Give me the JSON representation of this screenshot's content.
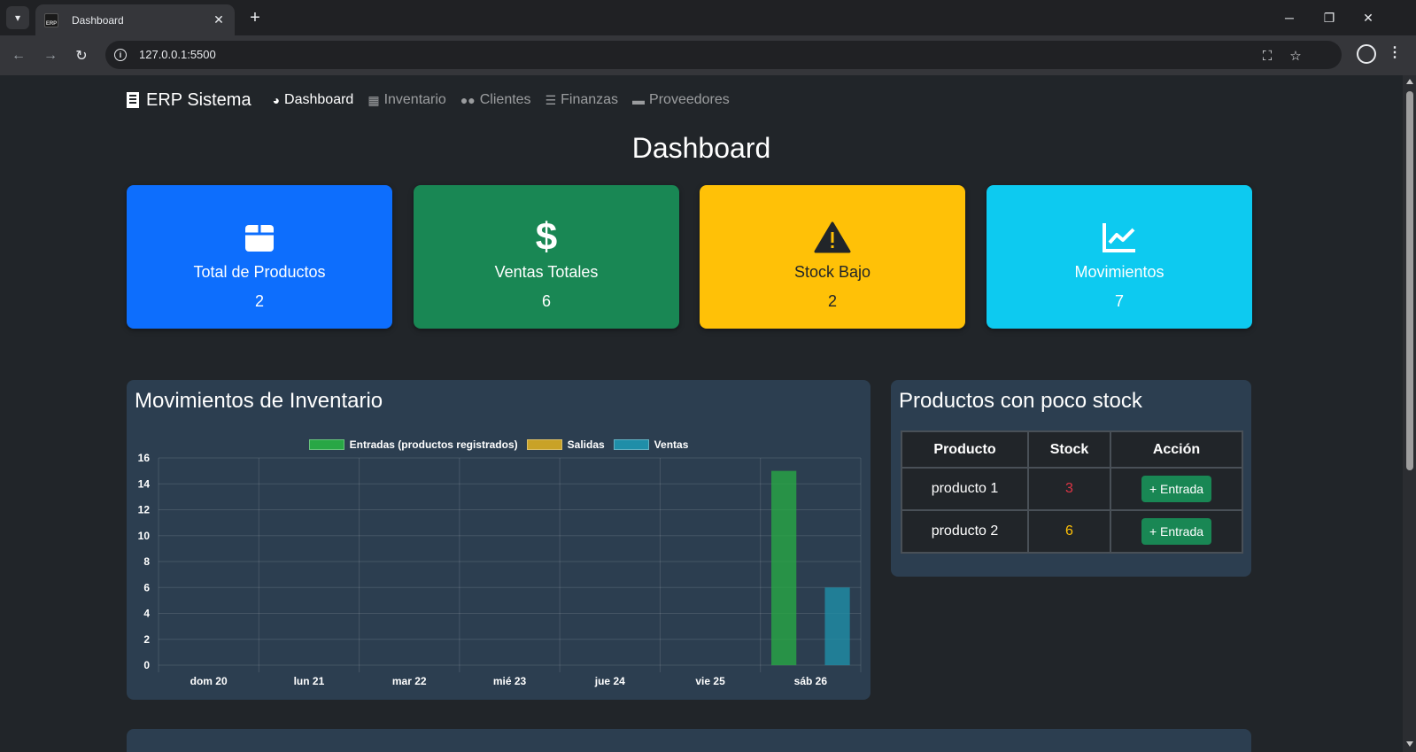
{
  "browser": {
    "tab_title": "Dashboard",
    "favicon_text": "ERP",
    "url": "127.0.0.1:5500"
  },
  "navbar": {
    "brand": "ERP Sistema",
    "links": [
      {
        "label": "Dashboard",
        "icon": "tachometer-icon",
        "active": true
      },
      {
        "label": "Inventario",
        "icon": "boxes-icon",
        "active": false
      },
      {
        "label": "Clientes",
        "icon": "users-icon",
        "active": false
      },
      {
        "label": "Finanzas",
        "icon": "coins-icon",
        "active": false
      },
      {
        "label": "Proveedores",
        "icon": "truck-icon",
        "active": false
      }
    ]
  },
  "page_title": "Dashboard",
  "cards": [
    {
      "label": "Total de Productos",
      "value": "2",
      "icon": "box-icon",
      "color": "#0d6efd",
      "text_color": "#ffffff"
    },
    {
      "label": "Ventas Totales",
      "value": "6",
      "icon": "dollar-icon",
      "color": "#198754",
      "text_color": "#ffffff"
    },
    {
      "label": "Stock Bajo",
      "value": "2",
      "icon": "warning-icon",
      "color": "#ffc107",
      "text_color": "#212529"
    },
    {
      "label": "Movimientos",
      "value": "7",
      "icon": "line-chart-icon",
      "color": "#0dcaf0",
      "text_color": "#ffffff"
    }
  ],
  "movements_panel": {
    "title": "Movimientos de Inventario"
  },
  "chart_data": {
    "type": "bar",
    "title": "",
    "xlabel": "",
    "ylabel": "",
    "categories": [
      "dom 20",
      "lun 21",
      "mar 22",
      "mié 23",
      "jue 24",
      "vie 25",
      "sáb 26"
    ],
    "series": [
      {
        "name": "Entradas (productos registrados)",
        "values": [
          0,
          0,
          0,
          0,
          0,
          0,
          15
        ],
        "color": "#28a745"
      },
      {
        "name": "Salidas",
        "values": [
          0,
          0,
          0,
          0,
          0,
          0,
          0
        ],
        "color": "#c9a227"
      },
      {
        "name": "Ventas",
        "values": [
          0,
          0,
          0,
          0,
          0,
          0,
          6
        ],
        "color": "#1f8ea8"
      }
    ],
    "ylim": [
      0,
      16
    ],
    "yticks": [
      0,
      2,
      4,
      6,
      8,
      10,
      12,
      14,
      16
    ],
    "grid": true,
    "legend": "top"
  },
  "low_stock_panel": {
    "title": "Productos con poco stock",
    "headers": [
      "Producto",
      "Stock",
      "Acción"
    ],
    "rows": [
      {
        "product": "producto 1",
        "stock": "3",
        "stock_color": "#dc3545",
        "action": "+ Entrada"
      },
      {
        "product": "producto 2",
        "stock": "6",
        "stock_color": "#ffc107",
        "action": "+ Entrada"
      }
    ]
  }
}
